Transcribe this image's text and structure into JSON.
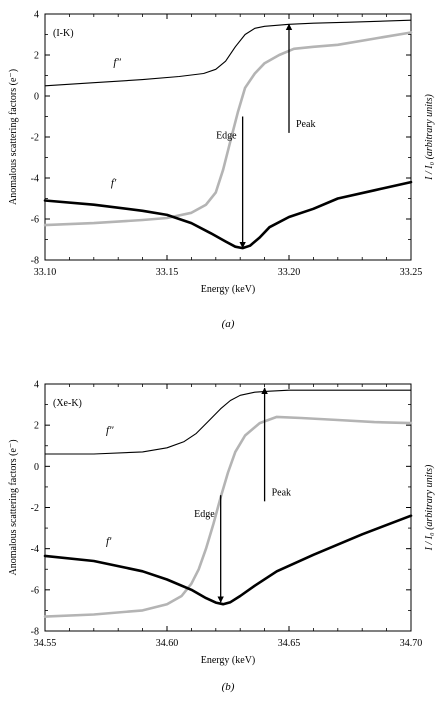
{
  "chart_data": [
    {
      "type": "line",
      "panel_label": "(a)",
      "inset_label": "(I-K)",
      "xlabel": "Energy (keV)",
      "ylabel": "Anomalous scattering factors (e⁻)",
      "ylabel_right": "I / I₀ (arbitrary units)",
      "xlim": [
        33.1,
        33.25
      ],
      "ylim": [
        -8,
        4
      ],
      "xticks": [
        "33.10",
        "33.15",
        "33.20",
        "33.25"
      ],
      "yticks": [
        "-8",
        "-6",
        "-4",
        "-2",
        "0",
        "2",
        "4"
      ],
      "grid": false,
      "annotations": [
        {
          "text": "Edge",
          "x": 33.181,
          "from_y": -1.0,
          "to_y": -7.4
        },
        {
          "text": "Peak",
          "x": 33.2,
          "from_y": -1.8,
          "to_y": 3.5
        }
      ],
      "series": [
        {
          "name": "f″",
          "style": "thin-black",
          "x": [
            33.1,
            33.12,
            33.14,
            33.155,
            33.165,
            33.17,
            33.174,
            33.178,
            33.182,
            33.186,
            33.19,
            33.195,
            33.2,
            33.21,
            33.225,
            33.25
          ],
          "y": [
            0.5,
            0.65,
            0.8,
            0.95,
            1.1,
            1.3,
            1.7,
            2.4,
            3.0,
            3.3,
            3.4,
            3.45,
            3.5,
            3.55,
            3.6,
            3.7
          ]
        },
        {
          "name": "f′",
          "style": "thick-black",
          "x": [
            33.1,
            33.12,
            33.14,
            33.15,
            33.16,
            33.168,
            33.174,
            33.178,
            33.181,
            33.184,
            33.188,
            33.192,
            33.2,
            33.21,
            33.22,
            33.235,
            33.25
          ],
          "y": [
            -5.1,
            -5.3,
            -5.6,
            -5.8,
            -6.2,
            -6.7,
            -7.1,
            -7.35,
            -7.42,
            -7.3,
            -6.9,
            -6.4,
            -5.9,
            -5.5,
            -5.0,
            -4.6,
            -4.2
          ]
        },
        {
          "name": "I / I₀",
          "style": "thick-gray",
          "x": [
            33.1,
            33.12,
            33.14,
            33.15,
            33.16,
            33.166,
            33.17,
            33.173,
            33.176,
            33.179,
            33.182,
            33.186,
            33.19,
            33.196,
            33.202,
            33.21,
            33.22,
            33.235,
            33.25
          ],
          "y": [
            -6.3,
            -6.2,
            -6.05,
            -5.95,
            -5.7,
            -5.3,
            -4.7,
            -3.6,
            -2.2,
            -0.8,
            0.4,
            1.1,
            1.6,
            2.0,
            2.3,
            2.4,
            2.5,
            2.8,
            3.1
          ]
        }
      ]
    },
    {
      "type": "line",
      "panel_label": "(b)",
      "inset_label": "(Xe-K)",
      "xlabel": "Energy (keV)",
      "ylabel": "Anomalous scattering factors (e⁻)",
      "ylabel_right": "I / I₀ (arbitrary units)",
      "xlim": [
        34.55,
        34.7
      ],
      "ylim": [
        -8,
        4
      ],
      "xticks": [
        "34.55",
        "34.60",
        "34.65",
        "34.70"
      ],
      "yticks": [
        "-8",
        "-6",
        "-4",
        "-2",
        "0",
        "2",
        "4"
      ],
      "grid": false,
      "annotations": [
        {
          "text": "Edge",
          "x": 34.622,
          "from_y": -1.4,
          "to_y": -6.6
        },
        {
          "text": "Peak",
          "x": 34.64,
          "from_y": -1.7,
          "to_y": 3.8
        }
      ],
      "series": [
        {
          "name": "f″",
          "style": "thin-black",
          "x": [
            34.55,
            34.57,
            34.59,
            34.6,
            34.607,
            34.612,
            34.617,
            34.622,
            34.626,
            34.63,
            34.636,
            34.642,
            34.65,
            34.67,
            34.7
          ],
          "y": [
            0.6,
            0.6,
            0.7,
            0.9,
            1.2,
            1.6,
            2.2,
            2.8,
            3.2,
            3.45,
            3.6,
            3.65,
            3.7,
            3.7,
            3.7
          ]
        },
        {
          "name": "f′",
          "style": "thick-black",
          "x": [
            34.55,
            34.57,
            34.59,
            34.6,
            34.61,
            34.616,
            34.62,
            34.623,
            34.626,
            34.63,
            34.636,
            34.645,
            34.66,
            34.68,
            34.7
          ],
          "y": [
            -4.35,
            -4.6,
            -5.1,
            -5.5,
            -6.0,
            -6.4,
            -6.62,
            -6.7,
            -6.6,
            -6.3,
            -5.8,
            -5.1,
            -4.3,
            -3.3,
            -2.4
          ]
        },
        {
          "name": "I / I₀",
          "style": "thick-gray",
          "x": [
            34.55,
            34.57,
            34.59,
            34.6,
            34.606,
            34.61,
            34.613,
            34.616,
            34.619,
            34.622,
            34.625,
            34.628,
            34.632,
            34.638,
            34.645,
            34.655,
            34.67,
            34.685,
            34.7
          ],
          "y": [
            -7.3,
            -7.2,
            -7.0,
            -6.7,
            -6.3,
            -5.7,
            -5.0,
            -4.0,
            -2.8,
            -1.5,
            -0.3,
            0.7,
            1.5,
            2.1,
            2.4,
            2.35,
            2.25,
            2.15,
            2.1
          ]
        }
      ]
    }
  ]
}
